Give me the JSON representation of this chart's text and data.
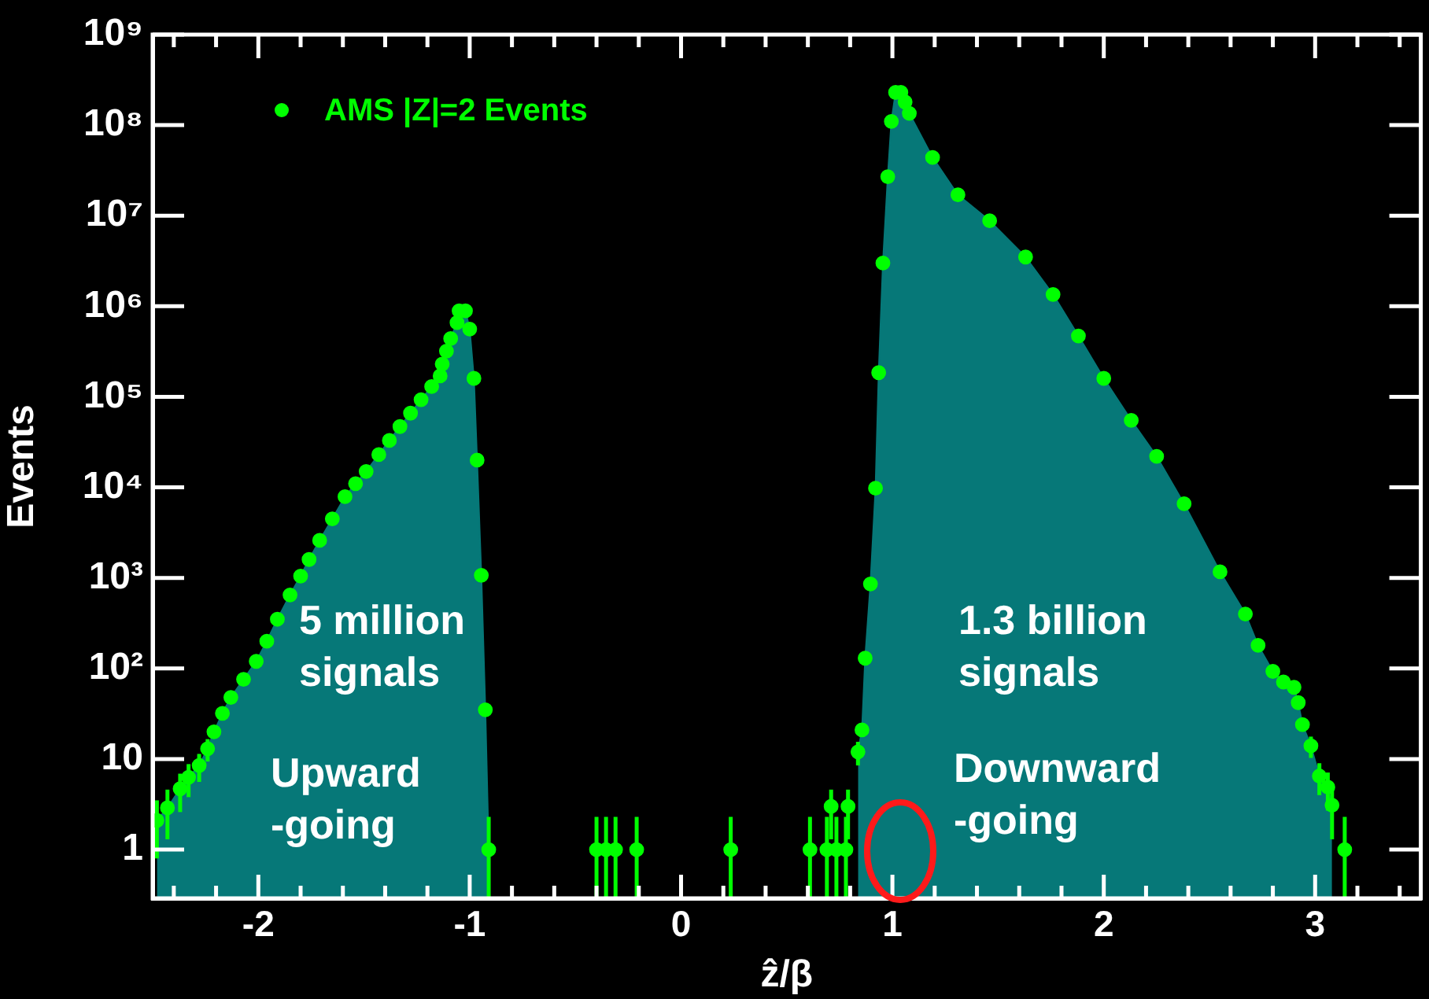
{
  "chart_data": {
    "type": "area",
    "xlabel": "ẑ/β",
    "ylabel": "Events",
    "log": "y",
    "legend": "top left",
    "xlim": [
      -2.5,
      3.5
    ],
    "xticks": [
      -2,
      -1,
      0,
      1,
      2,
      3,
      {
        "value": -2.4,
        "label": null
      },
      {
        "value": -2.2,
        "label": null
      },
      {
        "value": -1.8,
        "label": null
      },
      {
        "value": -1.6,
        "label": null
      },
      {
        "value": -1.4,
        "label": null
      },
      {
        "value": -1.2,
        "label": null
      },
      {
        "value": -0.8,
        "label": null
      },
      {
        "value": -0.6,
        "label": null
      },
      {
        "value": -0.4,
        "label": null
      },
      {
        "value": -0.2,
        "label": null
      },
      {
        "value": 0.2,
        "label": null
      },
      {
        "value": 0.4,
        "label": null
      },
      {
        "value": 0.6,
        "label": null
      },
      {
        "value": 0.8,
        "label": null
      },
      {
        "value": 1.2,
        "label": null
      },
      {
        "value": 1.4,
        "label": null
      },
      {
        "value": 1.6,
        "label": null
      },
      {
        "value": 1.8,
        "label": null
      },
      {
        "value": 2.2,
        "label": null
      },
      {
        "value": 2.4,
        "label": null
      },
      {
        "value": 2.6,
        "label": null
      },
      {
        "value": 2.8,
        "label": null
      },
      {
        "value": 3.2,
        "label": null
      },
      {
        "value": 3.4,
        "label": null
      }
    ],
    "ylim": [
      0.29,
      1000000000
    ],
    "yticks": [
      1,
      10,
      {
        "value": 100,
        "label": "10²"
      },
      {
        "value": 1000,
        "label": "10³"
      },
      {
        "value": 10000,
        "label": "10⁴"
      },
      {
        "value": 100000,
        "label": "10⁵"
      },
      {
        "value": 1000000,
        "label": "10⁶"
      },
      {
        "value": 10000000,
        "label": "10⁷"
      },
      {
        "value": 100000000,
        "label": "10⁸"
      },
      {
        "value": 1000000000,
        "label": "10⁹"
      }
    ],
    "annotations": [
      "5 million signals",
      "Upward -going",
      "1.3 billion signals",
      "Downward -going"
    ],
    "series": [
      {
        "type": "area",
        "color": "#067878",
        "x": [
          -2.48,
          -2.43,
          -2.37,
          -2.33,
          -2.28,
          -2.24,
          -2.21,
          -2.17,
          -2.13,
          -2.07,
          -2.01,
          -1.96,
          -1.91,
          -1.85,
          -1.8,
          -1.76,
          -1.71,
          -1.65,
          -1.59,
          -1.54,
          -1.49,
          -1.43,
          -1.38,
          -1.33,
          -1.28,
          -1.23,
          -1.18,
          -1.14,
          -1.13,
          -1.11,
          -1.09,
          -1.06,
          -1.05,
          -1.02,
          -1,
          -0.98,
          -0.965,
          -0.945,
          -0.926,
          -0.91,
          0,
          0.837,
          0.856,
          0.871,
          0.896,
          0.92,
          0.935,
          0.955,
          0.978,
          0.995,
          1.015,
          1.04,
          1.06,
          1.08,
          1.19,
          1.31,
          1.46,
          1.63,
          1.76,
          1.88,
          2,
          2.13,
          2.25,
          2.38,
          2.55,
          2.67,
          2.73,
          2.8,
          2.85,
          2.9,
          2.92,
          2.94,
          2.98,
          3.02,
          3.06,
          3.08
        ],
        "values": [
          2.1,
          2.9,
          4.7,
          6.3,
          8.5,
          13,
          20,
          32,
          48,
          76,
          120,
          200,
          350,
          650,
          1050,
          1600,
          2600,
          4500,
          7900,
          11000,
          15000,
          23000,
          33000,
          47000,
          66000,
          93000,
          130000,
          170000,
          230000,
          320000,
          440000,
          660000,
          890000,
          890000,
          560000,
          160000,
          20000,
          1070,
          35,
          1,
          null,
          12,
          21,
          130,
          860,
          9800,
          185000,
          3000000,
          27000000,
          110000000,
          230000000,
          230000000,
          180000000,
          135000000,
          44000000,
          17000000,
          8800000,
          3500000,
          1350000,
          470000,
          160000,
          55000,
          22000,
          6600,
          1170,
          400,
          180,
          93,
          71,
          62,
          42,
          24,
          14,
          6.5,
          4.9,
          3.1
        ]
      },
      {
        "type": "scatter",
        "name": "AMS |Z|=2 Events",
        "color": "#00ff00",
        "marker": "circle",
        "x": [
          -2.48,
          -2.43,
          -2.37,
          -2.33,
          -2.28,
          -2.24,
          -2.21,
          -2.17,
          -2.13,
          -2.07,
          -2.01,
          -1.96,
          -1.91,
          -1.85,
          -1.8,
          -1.76,
          -1.71,
          -1.65,
          -1.59,
          -1.54,
          -1.49,
          -1.43,
          -1.38,
          -1.33,
          -1.28,
          -1.23,
          -1.18,
          -1.14,
          -1.13,
          -1.11,
          -1.09,
          -1.06,
          -1.05,
          -1.02,
          -1,
          -0.98,
          -0.965,
          -0.945,
          -0.926,
          -0.91,
          -0.4,
          -0.355,
          -0.31,
          -0.21,
          0.235,
          0.61,
          0.69,
          0.71,
          0.735,
          0.78,
          0.79,
          0.837,
          0.856,
          0.871,
          0.896,
          0.92,
          0.935,
          0.955,
          0.978,
          0.995,
          1.015,
          1.04,
          1.06,
          1.08,
          1.19,
          1.31,
          1.46,
          1.63,
          1.76,
          1.88,
          2,
          2.13,
          2.25,
          2.38,
          2.55,
          2.67,
          2.73,
          2.8,
          2.85,
          2.9,
          2.92,
          2.94,
          2.98,
          3.02,
          3.06,
          3.08,
          3.14
        ],
        "values": [
          2.1,
          2.9,
          4.7,
          6.3,
          8.5,
          13,
          20,
          32,
          48,
          76,
          120,
          200,
          350,
          650,
          1050,
          1600,
          2600,
          4500,
          7900,
          11000,
          15000,
          23000,
          33000,
          47000,
          66000,
          93000,
          130000,
          170000,
          230000,
          320000,
          440000,
          660000,
          890000,
          890000,
          560000,
          160000,
          20000,
          1070,
          35,
          1,
          1,
          1,
          1,
          1,
          1,
          1,
          1,
          3,
          1,
          1,
          3,
          12,
          21,
          130,
          860,
          9800,
          185000,
          3000000,
          27000000,
          110000000,
          230000000,
          230000000,
          180000000,
          135000000,
          44000000,
          17000000,
          8800000,
          3500000,
          1350000,
          470000,
          160000,
          55000,
          22000,
          6600,
          1170,
          400,
          180,
          93,
          71,
          62,
          42,
          24,
          14,
          6.5,
          4.9,
          3.1,
          1
        ],
        "errors": [
          [
            0.8,
            3.5
          ],
          [
            1.3,
            4.6
          ],
          [
            2.6,
            6.9
          ],
          [
            3.8,
            8.8
          ],
          [
            5.6,
            11.4
          ],
          [
            9.4,
            16.6
          ],
          null,
          null,
          null,
          null,
          null,
          null,
          null,
          null,
          null,
          null,
          null,
          null,
          null,
          null,
          null,
          null,
          null,
          null,
          null,
          null,
          null,
          null,
          null,
          null,
          null,
          null,
          null,
          null,
          null,
          null,
          null,
          null,
          null,
          [
            0.3,
            2.3
          ],
          [
            0.3,
            2.3
          ],
          [
            0.3,
            2.3
          ],
          [
            0.3,
            2.3
          ],
          [
            0.3,
            2.3
          ],
          [
            0.3,
            2.3
          ],
          [
            0.3,
            2.3
          ],
          [
            0.3,
            2.3
          ],
          [
            1.3,
            4.6
          ],
          [
            0.3,
            2.3
          ],
          [
            0.3,
            2.3
          ],
          [
            1.3,
            4.6
          ],
          [
            8.5,
            15.5
          ],
          null,
          null,
          null,
          null,
          null,
          null,
          null,
          null,
          null,
          null,
          null,
          null,
          null,
          null,
          null,
          null,
          null,
          null,
          null,
          null,
          null,
          null,
          null,
          null,
          null,
          null,
          null,
          null,
          null,
          null,
          [
            10.3,
            17.7
          ],
          [
            4,
            9
          ],
          [
            2.7,
            7.1
          ],
          [
            1.3,
            4.9
          ],
          [
            0.3,
            2.3
          ]
        ]
      }
    ]
  }
}
